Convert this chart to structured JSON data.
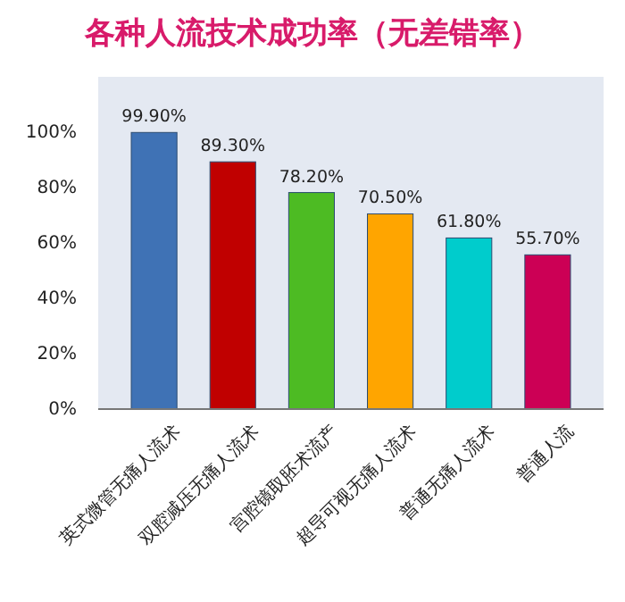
{
  "chart_data": {
    "type": "bar",
    "title": "各种人流技术成功率（无差错率）",
    "categories": [
      "英式微管无痛人流术",
      "双腔减压无痛人流术",
      "宫腔镜取胚术流产",
      "超导可视无痛人流术",
      "普通无痛人流术",
      "普通人流"
    ],
    "values": [
      99.9,
      89.3,
      78.2,
      70.5,
      61.8,
      55.7
    ],
    "colors": [
      "#3f72b5",
      "#c00000",
      "#4dbb23",
      "#ffa500",
      "#00cccc",
      "#cc0055"
    ],
    "value_labels": [
      "99.90%",
      "89.30%",
      "78.20%",
      "70.50%",
      "61.80%",
      "55.70%"
    ],
    "ylim": [
      0,
      120
    ],
    "yticks": [
      {
        "value": 0,
        "label": "0%"
      },
      {
        "value": 20,
        "label": "20%"
      },
      {
        "value": 40,
        "label": "40%"
      },
      {
        "value": 60,
        "label": "60%"
      },
      {
        "value": 80,
        "label": "80%"
      },
      {
        "value": 100,
        "label": "100%"
      }
    ]
  }
}
